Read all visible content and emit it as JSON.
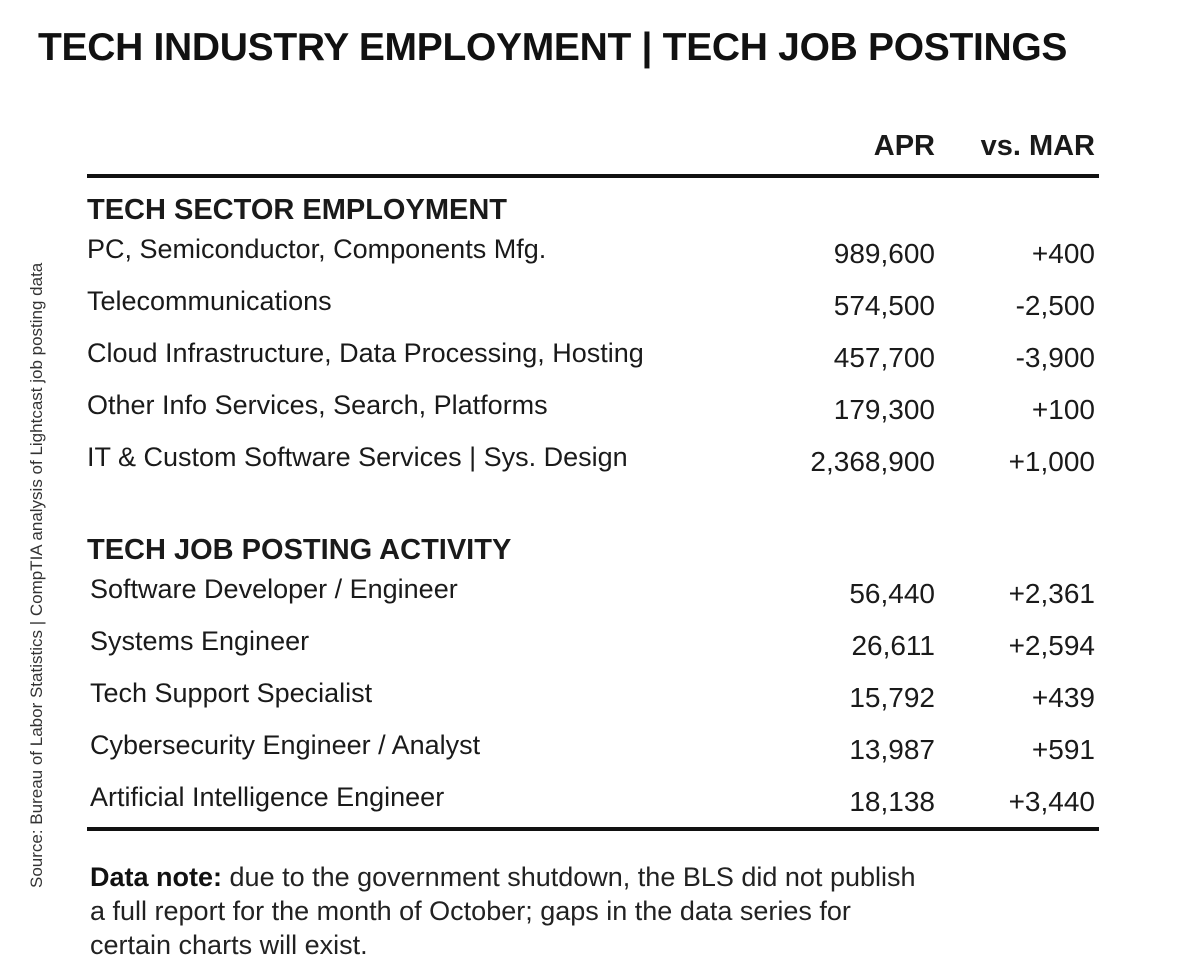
{
  "title": "TECH INDUSTRY EMPLOYMENT | TECH JOB POSTINGS",
  "source": "Source: Bureau of Labor Statistics | CompTIA analysis of Lightcast job posting data",
  "columns": [
    "APR",
    "vs. MAR"
  ],
  "sections": [
    {
      "heading": "TECH SECTOR EMPLOYMENT",
      "rows": [
        [
          "PC, Semiconductor, Components Mfg.",
          "989,600",
          "+400"
        ],
        [
          "Telecommunications",
          "574,500",
          "-2,500"
        ],
        [
          "Cloud Infrastructure, Data Processing, Hosting",
          "457,700",
          "-3,900"
        ],
        [
          "Other Info Services, Search, Platforms",
          "179,300",
          "+100"
        ],
        [
          "IT & Custom Software Services | Sys. Design",
          "2,368,900",
          "+1,000"
        ]
      ]
    },
    {
      "heading": "TECH JOB POSTING ACTIVITY",
      "rows": [
        [
          "Software Developer / Engineer",
          "56,440",
          "+2,361"
        ],
        [
          "Systems Engineer",
          "26,611",
          "+2,594"
        ],
        [
          "Tech Support Specialist",
          "15,792",
          "+439"
        ],
        [
          "Cybersecurity Engineer / Analyst",
          "13,987",
          "+591"
        ],
        [
          "Artificial Intelligence Engineer",
          "18,138",
          "+3,440"
        ]
      ]
    }
  ],
  "note": {
    "label": "Data note:",
    "lines": [
      "due to the government shutdown, the BLS did not publish",
      "a full report for the month of October; gaps in the data series for",
      "certain charts will exist."
    ]
  }
}
